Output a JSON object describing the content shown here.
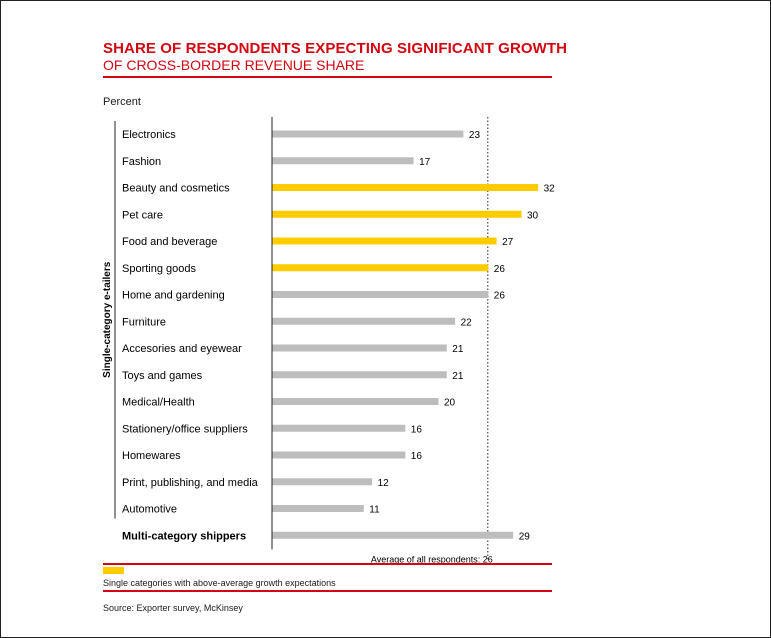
{
  "title": "SHARE OF RESPONDENTS EXPECTING SIGNIFICANT GROWTH",
  "subtitle": "OF CROSS-BORDER REVENUE SHARE",
  "unit_label": "Percent",
  "legend_text": "Single categories with above-average growth expectations",
  "source_text": "Source: Exporter survey, McKinsey",
  "colors": {
    "accent": "#d40511",
    "highlight": "#ffcc00",
    "default_bar": "#bdbdbd"
  },
  "chart_data": {
    "type": "bar",
    "orientation": "horizontal",
    "title": "SHARE OF RESPONDENTS EXPECTING SIGNIFICANT GROWTH",
    "subtitle": "OF CROSS-BORDER REVENUE SHARE",
    "ylabel": "Percent",
    "group_label": "Single-category e-tailers",
    "categories": [
      "Electronics",
      "Fashion",
      "Beauty and cosmetics",
      "Pet care",
      "Food and beverage",
      "Sporting goods",
      "Home and gardening",
      "Furniture",
      "Accesories and eyewear",
      "Toys and games",
      "Medical/Health",
      "Stationery/office suppliers",
      "Homewares",
      "Print, publishing, and media",
      "Automotive",
      "Multi-category shippers"
    ],
    "values": [
      23,
      17,
      32,
      30,
      27,
      26,
      26,
      22,
      21,
      21,
      20,
      16,
      16,
      12,
      11,
      29
    ],
    "highlighted": [
      false,
      false,
      true,
      true,
      true,
      true,
      false,
      false,
      false,
      false,
      false,
      false,
      false,
      false,
      false,
      false
    ],
    "bold": [
      false,
      false,
      false,
      false,
      false,
      false,
      false,
      false,
      false,
      false,
      false,
      false,
      false,
      false,
      false,
      true
    ],
    "average": 26,
    "average_label": "Average of all respondents: 26",
    "xlim": [
      0,
      32
    ],
    "legend": [
      {
        "name": "Single categories with above-average growth expectations",
        "color": "#ffcc00"
      }
    ],
    "grid": false
  }
}
